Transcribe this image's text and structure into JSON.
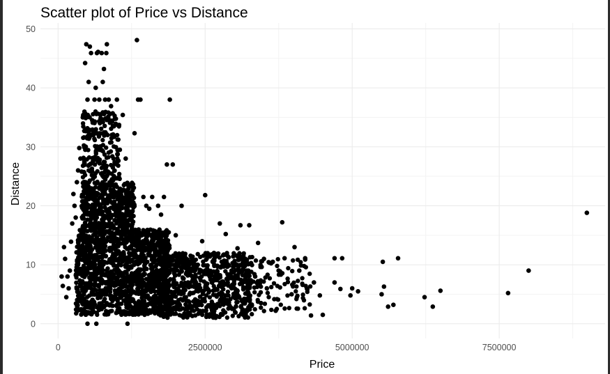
{
  "chart_data": {
    "type": "scatter",
    "title": "Scatter plot of Price vs Distance",
    "xlabel": "Price",
    "ylabel": "Distance",
    "xlim": [
      -300000,
      9300000
    ],
    "ylim": [
      -2.5,
      51
    ],
    "x_ticks": [
      0,
      2500000,
      5000000,
      7500000
    ],
    "x_tick_labels": [
      "0",
      "2500000",
      "5000000",
      "7500000"
    ],
    "y_ticks": [
      0,
      10,
      20,
      30,
      40,
      50
    ],
    "y_tick_labels": [
      "0",
      "10",
      "20",
      "30",
      "40",
      "50"
    ],
    "grid": true,
    "point_color": "#000000",
    "points": [
      [
        8990000,
        18.8
      ],
      [
        8000000,
        9.0
      ],
      [
        7650000,
        5.2
      ],
      [
        6500000,
        5.6
      ],
      [
        6370000,
        2.9
      ],
      [
        6230000,
        4.5
      ],
      [
        5780000,
        11.1
      ],
      [
        5700000,
        3.2
      ],
      [
        5610000,
        2.9
      ],
      [
        5540000,
        6.3
      ],
      [
        5520000,
        10.5
      ],
      [
        5500000,
        5.0
      ],
      [
        5100000,
        5.5
      ],
      [
        5000000,
        6.0
      ],
      [
        4970000,
        4.8
      ],
      [
        4830000,
        11.1
      ],
      [
        4800000,
        5.9
      ],
      [
        4700000,
        11.1
      ],
      [
        4700000,
        7.0
      ],
      [
        4500000,
        1.5
      ],
      [
        4450000,
        4.8
      ],
      [
        4350000,
        7.0
      ],
      [
        4300000,
        1.4
      ],
      [
        4200000,
        11.1
      ],
      [
        4100000,
        9.0
      ],
      [
        4020000,
        13.0
      ],
      [
        3970000,
        5.0
      ],
      [
        3850000,
        11.1
      ],
      [
        3810000,
        17.2
      ],
      [
        3750000,
        9.0
      ],
      [
        3700000,
        2.2
      ],
      [
        3650000,
        10.5
      ],
      [
        3550000,
        6.0
      ],
      [
        3450000,
        3.5
      ],
      [
        3400000,
        13.7
      ],
      [
        3350000,
        8.0
      ],
      [
        3250000,
        16.7
      ],
      [
        3100000,
        16.7
      ],
      [
        3050000,
        12.8
      ],
      [
        2950000,
        9.0
      ],
      [
        2850000,
        15.2
      ],
      [
        2750000,
        17.0
      ],
      [
        2650000,
        12.0
      ],
      [
        2500000,
        21.8
      ],
      [
        2600000,
        8.5
      ],
      [
        2450000,
        14.0
      ],
      [
        2350000,
        10.0
      ],
      [
        2200000,
        6.5
      ],
      [
        2100000,
        20.0
      ],
      [
        2000000,
        15.0
      ],
      [
        1950000,
        27.0
      ],
      [
        1900000,
        38.0
      ],
      [
        1850000,
        27.0
      ],
      [
        1800000,
        21.5
      ],
      [
        1750000,
        18.5
      ],
      [
        1700000,
        20.0
      ],
      [
        1650000,
        13.0
      ],
      [
        1600000,
        21.5
      ],
      [
        1550000,
        19.5
      ],
      [
        1500000,
        20.0
      ],
      [
        1450000,
        21.5
      ],
      [
        1400000,
        38.0
      ],
      [
        1360000,
        38.0
      ],
      [
        1340000,
        48.1
      ],
      [
        1300000,
        32.3
      ],
      [
        1250000,
        22.0
      ],
      [
        1200000,
        23.0
      ],
      [
        1150000,
        28.0
      ],
      [
        1100000,
        35.4
      ],
      [
        1050000,
        29.5
      ],
      [
        1000000,
        38.0
      ],
      [
        950000,
        25.0
      ],
      [
        900000,
        36.9
      ],
      [
        860000,
        38.0
      ],
      [
        830000,
        47.4
      ],
      [
        820000,
        45.9
      ],
      [
        800000,
        38.0
      ],
      [
        780000,
        43.2
      ],
      [
        760000,
        41.0
      ],
      [
        740000,
        45.9
      ],
      [
        720000,
        35.4
      ],
      [
        700000,
        38.0
      ],
      [
        680000,
        46.1
      ],
      [
        660000,
        45.9
      ],
      [
        640000,
        40.0
      ],
      [
        620000,
        38.0
      ],
      [
        600000,
        32.0
      ],
      [
        580000,
        34.5
      ],
      [
        560000,
        45.9
      ],
      [
        540000,
        47.0
      ],
      [
        520000,
        41.0
      ],
      [
        500000,
        38.0
      ],
      [
        480000,
        47.4
      ],
      [
        460000,
        44.2
      ],
      [
        440000,
        31.6
      ],
      [
        420000,
        35.0
      ],
      [
        400000,
        25.8
      ],
      [
        380000,
        28.0
      ],
      [
        360000,
        29.8
      ],
      [
        340000,
        26.0
      ],
      [
        320000,
        24.0
      ],
      [
        300000,
        18.0
      ],
      [
        280000,
        20.0
      ],
      [
        260000,
        22.0
      ],
      [
        240000,
        17.0
      ],
      [
        220000,
        13.9
      ],
      [
        200000,
        9.0
      ],
      [
        180000,
        6.0
      ],
      [
        160000,
        8.0
      ],
      [
        140000,
        4.5
      ],
      [
        120000,
        11.0
      ],
      [
        100000,
        13.0
      ],
      [
        80000,
        6.4
      ],
      [
        60000,
        8.0
      ],
      [
        1180000,
        0.0
      ],
      [
        650000,
        0.0
      ],
      [
        500000,
        0.0
      ],
      [
        2300000,
        3.0
      ],
      [
        3000000,
        7.5
      ],
      [
        3500000,
        11.0
      ]
    ]
  }
}
